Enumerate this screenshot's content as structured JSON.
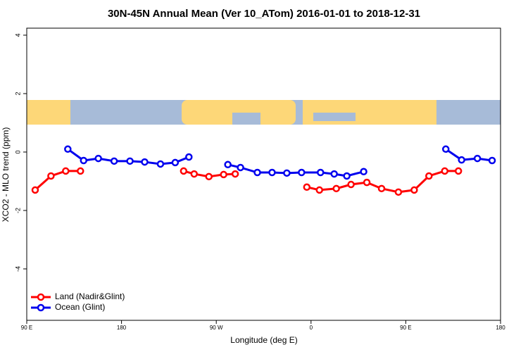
{
  "chart_data": {
    "type": "line",
    "title": "30N-45N Annual Mean (Ver 10_ATom)   2016-01-01 to 2018-12-31",
    "x_label": "Longitude (deg E)",
    "y_label": "XCO2 - MLO trend (ppm)",
    "xlim": [
      90,
      540
    ],
    "ylim": [
      -5.76,
      4.24
    ],
    "xticks": [
      {
        "value": 90,
        "label": "90 E"
      },
      180,
      {
        "value": 270,
        "label": "90 W"
      },
      {
        "value": 360,
        "label": "0"
      },
      {
        "value": 450,
        "label": "90 E"
      },
      {
        "value": 540,
        "label": "180"
      }
    ],
    "yticks": [
      4,
      2,
      0,
      -2,
      -4
    ],
    "legend": "bottom-left",
    "series": [
      {
        "name": "Land (Nadir&Glint)",
        "color": "#ff0000",
        "x": [
          98,
          113,
          127,
          141,
          190,
          239,
          249,
          263,
          277,
          288,
          320,
          356,
          368,
          384,
          398,
          413,
          427,
          443,
          458,
          472,
          487,
          500
        ],
        "values": [
          -1.3,
          -0.82,
          -0.65,
          -0.65,
          null,
          -0.65,
          -0.75,
          -0.84,
          -0.77,
          -0.75,
          null,
          -1.2,
          -1.3,
          -1.25,
          -1.11,
          -1.04,
          -1.25,
          -1.37,
          -1.3,
          -0.82,
          -0.65,
          -0.65
        ]
      },
      {
        "name": "Ocean (Glint)",
        "color": "#0000ee",
        "x": [
          129,
          144,
          158,
          173,
          188,
          202,
          217,
          231,
          244,
          262,
          281,
          293,
          309,
          323,
          337,
          351,
          369,
          382,
          394,
          410,
          450,
          488,
          503,
          518,
          532
        ],
        "values": [
          0.1,
          -0.29,
          -0.22,
          -0.31,
          -0.31,
          -0.34,
          -0.41,
          -0.36,
          -0.17,
          null,
          -0.43,
          -0.53,
          -0.7,
          -0.7,
          -0.72,
          -0.7,
          -0.7,
          -0.75,
          -0.82,
          -0.67,
          null,
          0.1,
          -0.27,
          -0.22,
          -0.29
        ]
      }
    ]
  }
}
